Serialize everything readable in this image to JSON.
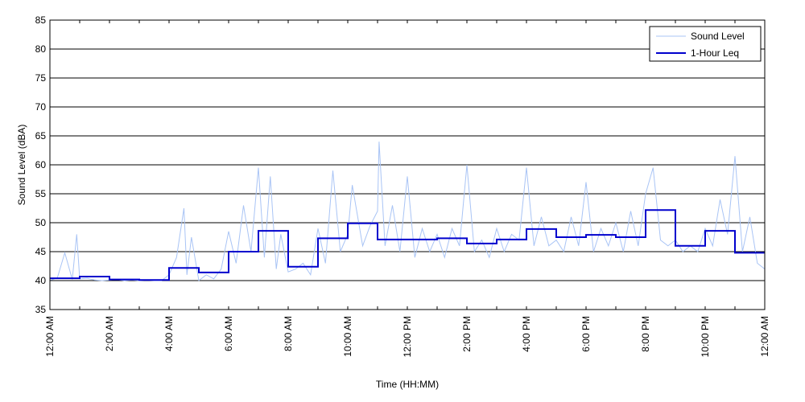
{
  "chart_data": {
    "type": "line",
    "xlabel": "Time (HH:MM)",
    "ylabel": "Sound Level (dBA)",
    "ylim": [
      35,
      85
    ],
    "y_ticks": [
      "35",
      "40",
      "45",
      "50",
      "55",
      "60",
      "65",
      "70",
      "75",
      "80",
      "85"
    ],
    "xlim_hours": [
      0,
      24
    ],
    "x_tick_labels": [
      "12:00 AM",
      "2:00 AM",
      "4:00 AM",
      "6:00 AM",
      "8:00 AM",
      "10:00 AM",
      "12:00 PM",
      "2:00 PM",
      "4:00 PM",
      "6:00 PM",
      "8:00 PM",
      "10:00 PM",
      "12:00 AM"
    ],
    "grid": "horizontal",
    "legend_position": "top-right",
    "legend": [
      "Sound Level",
      "1-Hour Leq"
    ],
    "colors": {
      "sound_level": "#a9c4f5",
      "leq": "#0000cd"
    },
    "series": [
      {
        "name": "1-Hour Leq",
        "step": true,
        "hour_start": [
          0,
          1,
          2,
          3,
          4,
          5,
          6,
          7,
          8,
          9,
          10,
          11,
          12,
          13,
          14,
          15,
          16,
          17,
          18,
          19,
          20,
          21,
          22,
          23
        ],
        "values": [
          40.4,
          40.7,
          40.2,
          40.1,
          42.2,
          41.4,
          45.0,
          48.6,
          42.4,
          47.3,
          49.9,
          47.1,
          47.1,
          47.3,
          46.4,
          47.1,
          48.9,
          47.5,
          47.9,
          47.5,
          52.2,
          46.0,
          48.6,
          44.8
        ]
      },
      {
        "name": "Sound Level",
        "hours": [
          0,
          0.25,
          0.5,
          0.75,
          0.9,
          1.0,
          1.25,
          1.5,
          1.75,
          2,
          2.25,
          2.5,
          2.75,
          3,
          3.25,
          3.5,
          3.75,
          4,
          4.25,
          4.5,
          4.6,
          4.75,
          5,
          5.25,
          5.5,
          5.75,
          6,
          6.25,
          6.5,
          6.75,
          7,
          7.2,
          7.4,
          7.6,
          7.75,
          8,
          8.25,
          8.5,
          8.75,
          9,
          9.25,
          9.5,
          9.75,
          10,
          10.15,
          10.5,
          10.75,
          11,
          11.05,
          11.25,
          11.5,
          11.75,
          12,
          12.25,
          12.5,
          12.75,
          13,
          13.25,
          13.5,
          13.75,
          14,
          14.25,
          14.5,
          14.75,
          15,
          15.25,
          15.5,
          15.75,
          16,
          16.25,
          16.5,
          16.75,
          17,
          17.25,
          17.5,
          17.75,
          18,
          18.25,
          18.5,
          18.75,
          19,
          19.25,
          19.5,
          19.75,
          20,
          20.25,
          20.5,
          20.75,
          21,
          21.25,
          21.5,
          21.75,
          22,
          22.25,
          22.5,
          22.75,
          23,
          23.25,
          23.5,
          23.75,
          24
        ],
        "values": [
          40.0,
          40.5,
          44.8,
          40.2,
          48.0,
          40.3,
          40.4,
          40.1,
          40.0,
          40.1,
          40.2,
          40.0,
          40.1,
          40.0,
          40.1,
          40.0,
          40.0,
          41.0,
          44.0,
          52.5,
          41.0,
          47.5,
          40.0,
          41.0,
          40.3,
          42.0,
          48.5,
          43.0,
          53.0,
          45.0,
          59.5,
          44.0,
          58.0,
          42.0,
          48.0,
          41.5,
          42.0,
          43.0,
          41.0,
          49.0,
          43.0,
          59.0,
          45.0,
          48.0,
          56.5,
          46.0,
          49.5,
          52.0,
          64.0,
          46.0,
          53.0,
          45.0,
          58.0,
          44.0,
          49.0,
          45.0,
          48.0,
          44.0,
          49.0,
          46.0,
          60.0,
          45.0,
          47.0,
          44.0,
          49.0,
          45.0,
          48.0,
          47.0,
          59.5,
          46.0,
          51.0,
          46.0,
          47.0,
          45.0,
          51.0,
          46.0,
          57.0,
          45.0,
          49.0,
          46.0,
          50.0,
          45.0,
          52.0,
          46.0,
          55.0,
          59.5,
          47.0,
          46.0,
          47.0,
          45.0,
          46.0,
          45.0,
          49.0,
          46.0,
          54.0,
          48.0,
          61.5,
          45.0,
          51.0,
          43.0,
          42.0
        ]
      }
    ]
  }
}
